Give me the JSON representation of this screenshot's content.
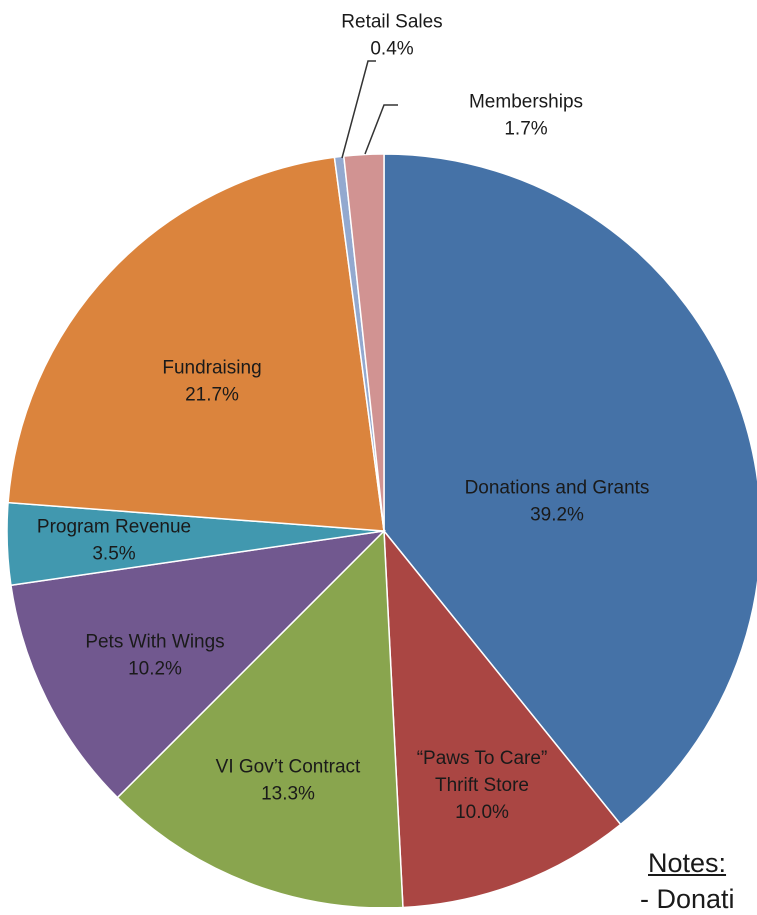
{
  "chart_data": {
    "type": "pie",
    "slices": [
      {
        "label": "Donations and Grants",
        "lines": [
          "Donations and Grants"
        ],
        "value": 39.2,
        "display": "39.2%",
        "color": "#4572A7"
      },
      {
        "label": "“Paws To Care” Thrift Store",
        "lines": [
          "“Paws To Care”",
          "Thrift Store"
        ],
        "value": 10.0,
        "display": "10.0%",
        "color": "#AA4643"
      },
      {
        "label": "VI Gov’t Contract",
        "lines": [
          "VI Gov’t Contract"
        ],
        "value": 13.3,
        "display": "13.3%",
        "color": "#89A54E"
      },
      {
        "label": "Pets With Wings",
        "lines": [
          "Pets With Wings"
        ],
        "value": 10.2,
        "display": "10.2%",
        "color": "#71588F"
      },
      {
        "label": "Program Revenue",
        "lines": [
          "Program Revenue"
        ],
        "value": 3.5,
        "display": "3.5%",
        "color": "#4198AF"
      },
      {
        "label": "Fundraising",
        "lines": [
          "Fundraising"
        ],
        "value": 21.7,
        "display": "21.7%",
        "color": "#DB843D"
      },
      {
        "label": "Retail Sales",
        "lines": [
          "Retail Sales"
        ],
        "value": 0.4,
        "display": "0.4%",
        "color": "#93A9CF"
      },
      {
        "label": "Memberships",
        "lines": [
          "Memberships"
        ],
        "value": 1.7,
        "display": "1.7%",
        "color": "#D19392"
      }
    ]
  },
  "notes": {
    "heading": "Notes:",
    "line1": "- Donati"
  }
}
